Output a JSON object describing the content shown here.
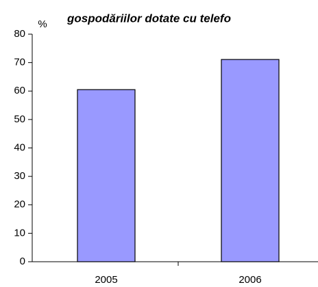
{
  "chart_data": {
    "type": "bar",
    "title": "gospodăriilor dotate cu telefo",
    "y_label": "%",
    "categories": [
      "2005",
      "2006"
    ],
    "values": [
      60.5,
      71.1
    ],
    "color": "#9999ff",
    "ylim": [
      0,
      80
    ],
    "yticks": [
      0,
      10,
      20,
      30,
      40,
      50,
      60,
      70,
      80
    ],
    "grid": false
  }
}
